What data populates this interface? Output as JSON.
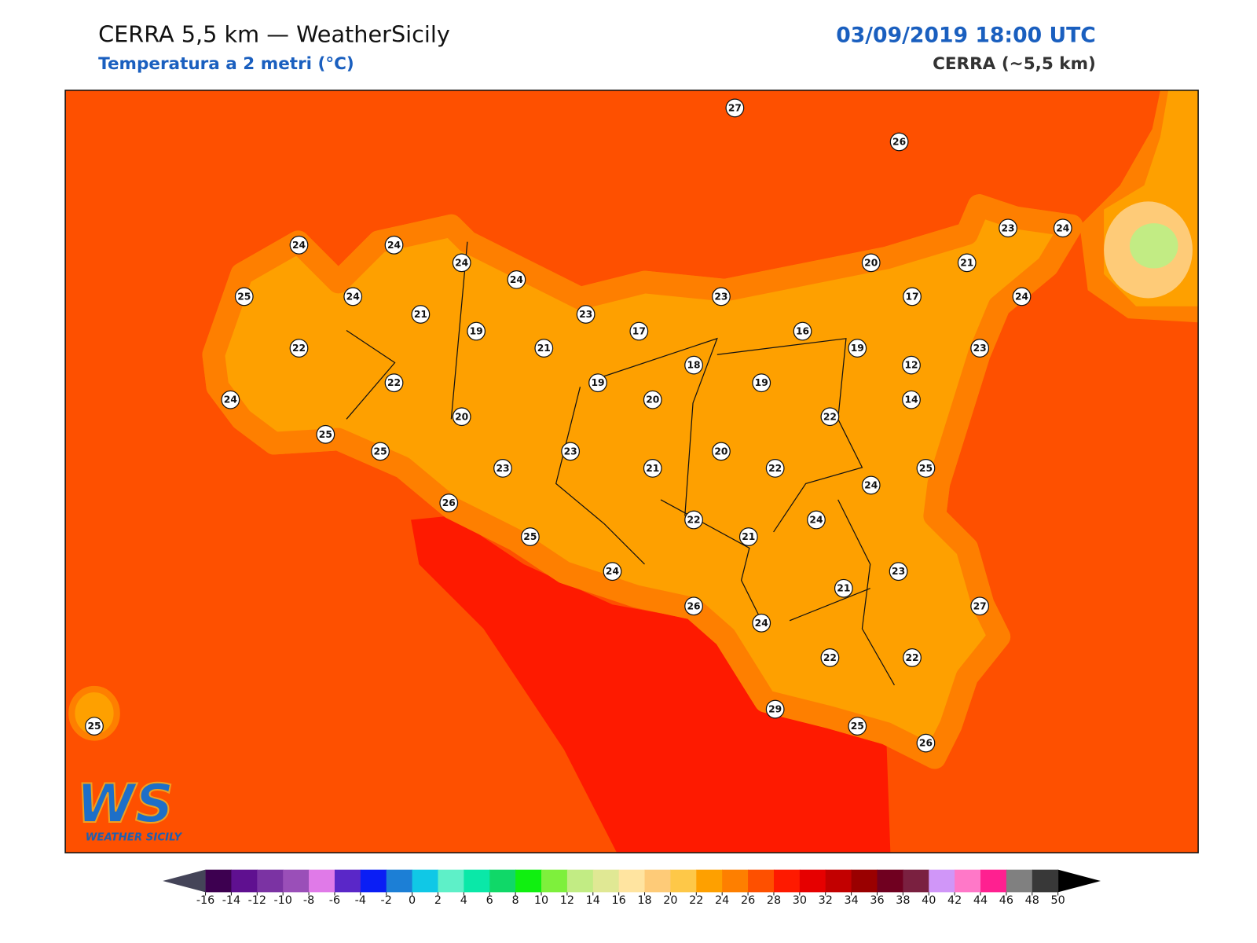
{
  "header": {
    "title": "CERRA 5,5 km — WeatherSicily",
    "subtitle": "Temperatura a 2 metri (°C)",
    "datetime": "03/09/2019 18:00 UTC",
    "model": "CERRA (~5,5 km)"
  },
  "stations": {
    "values": [
      27,
      26,
      24,
      24,
      24,
      24,
      25,
      24,
      21,
      19,
      21,
      23,
      17,
      23,
      20,
      21,
      23,
      24,
      17,
      24,
      16,
      19,
      23,
      12,
      14,
      22,
      22,
      24,
      25,
      25,
      20,
      23,
      23,
      19,
      20,
      18,
      19,
      22,
      20,
      21,
      22,
      25,
      24,
      24,
      22,
      21,
      26,
      25,
      24,
      26,
      24,
      21,
      23,
      27,
      22,
      22,
      29,
      25,
      26,
      25
    ]
  },
  "colorbar": {
    "ticks": [
      -16,
      -14,
      -12,
      -10,
      -8,
      -6,
      -4,
      -2,
      0,
      2,
      4,
      6,
      8,
      10,
      12,
      14,
      16,
      18,
      20,
      22,
      24,
      26,
      28,
      30,
      32,
      34,
      36,
      38,
      40,
      42,
      44,
      46,
      48,
      50
    ],
    "colors": [
      "#3d0050",
      "#5f1090",
      "#7b33a3",
      "#9a4fb8",
      "#e07ae8",
      "#5a27c8",
      "#0a1ef5",
      "#1c7fd6",
      "#10c8e6",
      "#5ef0c8",
      "#0ae8a8",
      "#10d868",
      "#10f010",
      "#7ef03c",
      "#c2ec84",
      "#e0e894",
      "#ffe4a0",
      "#fecb78",
      "#fec848",
      "#fea000",
      "#fe7f00",
      "#fe5000",
      "#fe1a00",
      "#e60000",
      "#c20000",
      "#9a0000",
      "#700020",
      "#7a2040",
      "#d096f8",
      "#ff78c8",
      "#ff2090",
      "#808080",
      "#383838"
    ],
    "under_color": "#444458",
    "over_color": "#000000"
  },
  "logo": {
    "mark": "WS",
    "text": "WEATHER SICILY"
  }
}
